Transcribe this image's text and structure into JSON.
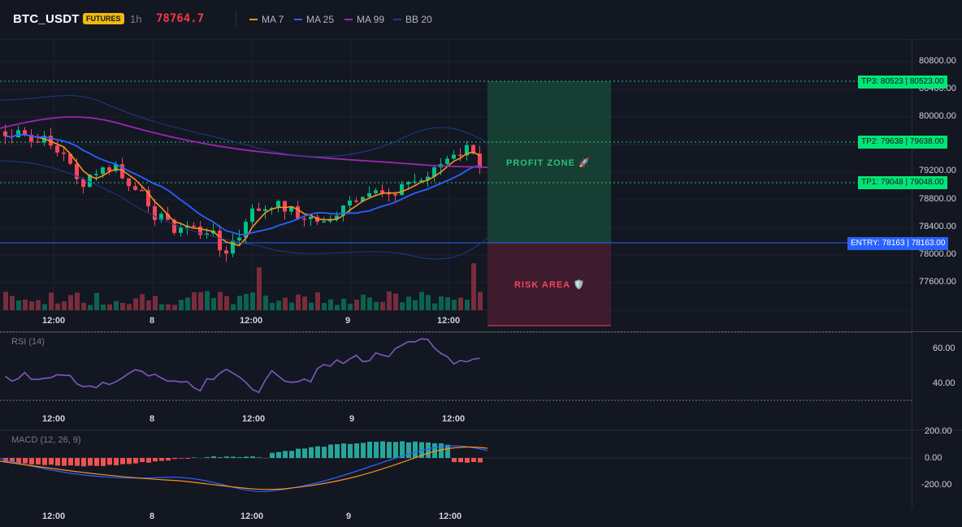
{
  "header": {
    "symbol": "BTC_USDT",
    "badge": "FUTURES",
    "timeframe": "1h",
    "last_price": "78764.7",
    "legend": [
      {
        "label": "MA 7",
        "color": "#f7931a"
      },
      {
        "label": "MA 25",
        "color": "#2962ff"
      },
      {
        "label": "MA 99",
        "color": "#9c27b0"
      },
      {
        "label": "BB 20",
        "color": "#1e3a8a"
      }
    ]
  },
  "main": {
    "price_scale": [
      "80800.00",
      "80400.00",
      "80000.00",
      "79200.00",
      "78800.00",
      "78400.00",
      "78000.00",
      "77600.00"
    ],
    "price_tags": [
      {
        "name": "tp3",
        "label": "TP3: 80523",
        "value": "80523.00",
        "color": "#00e676"
      },
      {
        "name": "tp2",
        "label": "TP2: 79638",
        "value": "79638.00",
        "color": "#00e676"
      },
      {
        "name": "tp1",
        "label": "TP1: 79048",
        "value": "79048.00",
        "color": "#00e676"
      },
      {
        "name": "entry",
        "label": "ENTRY: 78163",
        "value": "78163.00",
        "color": "#2962ff"
      }
    ],
    "profit_zone_label": "PROFIT ZONE 🚀",
    "risk_area_label": "RISK AREA 🛡️",
    "time_labels": [
      "12:00",
      "8",
      "12:00",
      "9",
      "12:00"
    ]
  },
  "rsi": {
    "title": "RSI (14)",
    "scale": [
      "60.00",
      "40.00"
    ],
    "time_labels": [
      "12:00",
      "8",
      "12:00",
      "9",
      "12:00"
    ]
  },
  "macd": {
    "title": "MACD (12, 26, 9)",
    "scale": [
      "200.00",
      "0.00",
      "-200.00"
    ],
    "time_labels": [
      "12:00",
      "8",
      "12:00",
      "9",
      "12:00"
    ]
  },
  "colors": {
    "up": "#00c087",
    "down": "#f6465d",
    "background": "#131722"
  }
}
